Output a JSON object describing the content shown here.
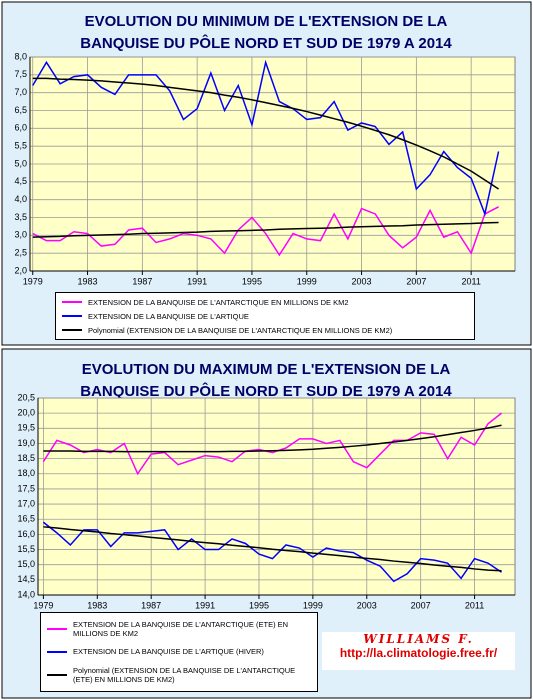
{
  "chart_data": [
    {
      "type": "line",
      "title": [
        "EVOLUTION DU MINIMUM DE L'EXTENSION DE LA",
        "BANQUISE DU PÔLE NORD ET SUD DE 1979 A 2014"
      ],
      "x": [
        1979,
        1980,
        1981,
        1982,
        1983,
        1984,
        1985,
        1986,
        1987,
        1988,
        1989,
        1990,
        1991,
        1992,
        1993,
        1994,
        1995,
        1996,
        1997,
        1998,
        1999,
        2000,
        2001,
        2002,
        2003,
        2004,
        2005,
        2006,
        2007,
        2008,
        2009,
        2010,
        2011,
        2012,
        2013
      ],
      "xlim": [
        1978.8,
        2014.2
      ],
      "xticks": [
        1979,
        1983,
        1987,
        1991,
        1995,
        1999,
        2003,
        2007,
        2011
      ],
      "ylim": [
        2,
        8
      ],
      "yticks": [
        {
          "value": 2,
          "label": "2,0"
        },
        {
          "value": 2.5,
          "label": "2,5"
        },
        {
          "value": 3,
          "label": "3,0"
        },
        {
          "value": 3.5,
          "label": "3,5"
        },
        {
          "value": 4,
          "label": "4,0"
        },
        {
          "value": 4.5,
          "label": "4,5"
        },
        {
          "value": 5,
          "label": "5,0"
        },
        {
          "value": 5.5,
          "label": "5,5"
        },
        {
          "value": 6,
          "label": "6,0"
        },
        {
          "value": 6.5,
          "label": "6,5"
        },
        {
          "value": 7,
          "label": "7,0"
        },
        {
          "value": 7.5,
          "label": "7,5"
        },
        {
          "value": 8,
          "label": "8,0"
        }
      ],
      "grid": true,
      "series": [
        {
          "name": "EXTENSION DE LA BANQUISE DE L'ANTARCTIQUE EN MILLIONS DE KM2",
          "color": "#ff00ff",
          "values": [
            3.05,
            2.85,
            2.85,
            3.1,
            3.05,
            2.7,
            2.75,
            3.15,
            3.2,
            2.8,
            2.9,
            3.05,
            3.0,
            2.9,
            2.5,
            3.15,
            3.5,
            3.05,
            2.45,
            3.05,
            2.9,
            2.85,
            3.6,
            2.9,
            3.75,
            3.6,
            3.0,
            2.65,
            2.95,
            3.7,
            2.95,
            3.1,
            2.5,
            3.6,
            3.8
          ]
        },
        {
          "name": "EXTENSION DE LA BANQUISE DE L'ARTIQUE",
          "color": "#0000ff",
          "values": [
            7.2,
            7.85,
            7.25,
            7.45,
            7.5,
            7.15,
            6.95,
            7.5,
            7.5,
            7.5,
            7.05,
            6.25,
            6.55,
            7.55,
            6.5,
            7.2,
            6.1,
            7.85,
            6.75,
            6.55,
            6.25,
            6.3,
            6.75,
            5.95,
            6.15,
            6.05,
            5.55,
            5.9,
            4.3,
            4.7,
            5.35,
            4.9,
            4.6,
            3.6,
            5.35
          ]
        },
        {
          "name": "Polynomial (EXTENSION DE LA BANQUISE DE L'ANTARCTIQUE EN MILLIONS DE KM2)",
          "color": "#000000",
          "values": [
            2.95,
            2.96,
            2.97,
            2.99,
            3.0,
            3.01,
            3.02,
            3.03,
            3.05,
            3.06,
            3.07,
            3.08,
            3.09,
            3.11,
            3.12,
            3.13,
            3.14,
            3.15,
            3.17,
            3.18,
            3.19,
            3.2,
            3.21,
            3.23,
            3.24,
            3.25,
            3.26,
            3.27,
            3.29,
            3.3,
            3.31,
            3.32,
            3.33,
            3.35,
            3.36
          ]
        },
        {
          "color": "#000000",
          "values": [
            7.4,
            7.4,
            7.38,
            7.37,
            7.35,
            7.33,
            7.3,
            7.27,
            7.24,
            7.2,
            7.15,
            7.1,
            7.05,
            7.0,
            6.93,
            6.87,
            6.8,
            6.72,
            6.64,
            6.56,
            6.47,
            6.37,
            6.27,
            6.17,
            6.06,
            5.94,
            5.82,
            5.68,
            5.53,
            5.37,
            5.2,
            5.0,
            4.8,
            4.55,
            4.3
          ]
        }
      ]
    },
    {
      "type": "line",
      "title": [
        "EVOLUTION DU MAXIMUM DE L'EXTENSION DE LA",
        "BANQUISE DU PÔLE NORD ET SUD DE 1979 A 2014"
      ],
      "x": [
        1979,
        1980,
        1981,
        1982,
        1983,
        1984,
        1985,
        1986,
        1987,
        1988,
        1989,
        1990,
        1991,
        1992,
        1993,
        1994,
        1995,
        1996,
        1997,
        1998,
        1999,
        2000,
        2001,
        2002,
        2003,
        2004,
        2005,
        2006,
        2007,
        2008,
        2009,
        2010,
        2011,
        2012,
        2013
      ],
      "xlim": [
        1978.6,
        2014.0
      ],
      "xticks": [
        1979,
        1983,
        1987,
        1991,
        1995,
        1999,
        2003,
        2007,
        2011
      ],
      "ylim": [
        14,
        20.5
      ],
      "yticks": [
        {
          "value": 14,
          "label": "14,0"
        },
        {
          "value": 14.5,
          "label": "14,5"
        },
        {
          "value": 15,
          "label": "15,0"
        },
        {
          "value": 15.5,
          "label": "15,5"
        },
        {
          "value": 16,
          "label": "16,0"
        },
        {
          "value": 16.5,
          "label": "16,5"
        },
        {
          "value": 17,
          "label": "17,0"
        },
        {
          "value": 17.5,
          "label": "17,5"
        },
        {
          "value": 18,
          "label": "18,0"
        },
        {
          "value": 18.5,
          "label": "18,5"
        },
        {
          "value": 19,
          "label": "19,0"
        },
        {
          "value": 19.5,
          "label": "19,5"
        },
        {
          "value": 20,
          "label": "20,0"
        },
        {
          "value": 20.5,
          "label": "20,5"
        }
      ],
      "grid": true,
      "series": [
        {
          "name": "EXTENSION DE LA BANQUISE DE L'ANTARCTIQUE (ETE) EN MILLIONS DE KM2",
          "color": "#ff00ff",
          "values": [
            18.4,
            19.1,
            18.95,
            18.7,
            18.8,
            18.7,
            19.0,
            18.0,
            18.65,
            18.7,
            18.3,
            18.45,
            18.6,
            18.55,
            18.4,
            18.75,
            18.8,
            18.7,
            18.85,
            19.15,
            19.15,
            19.0,
            19.1,
            18.4,
            18.2,
            18.65,
            19.1,
            19.1,
            19.35,
            19.3,
            18.5,
            19.2,
            18.95,
            19.65,
            20.0
          ]
        },
        {
          "name": "EXTENSION DE LA BANQUISE DE L'ARTIQUE (HIVER)",
          "color": "#0000ff",
          "values": [
            16.4,
            16.05,
            15.65,
            16.15,
            16.15,
            15.6,
            16.05,
            16.05,
            16.1,
            16.15,
            15.5,
            15.85,
            15.5,
            15.5,
            15.85,
            15.7,
            15.35,
            15.2,
            15.65,
            15.55,
            15.25,
            15.55,
            15.45,
            15.4,
            15.15,
            14.95,
            14.45,
            14.7,
            15.2,
            15.15,
            15.05,
            14.55,
            15.2,
            15.05,
            14.75
          ]
        },
        {
          "name": "Polynomial (EXTENSION DE LA BANQUISE DE L'ANTARCTIQUE (ETE) EN MILLIONS DE KM2)",
          "color": "#000000",
          "values": [
            18.75,
            18.75,
            18.75,
            18.74,
            18.74,
            18.74,
            18.73,
            18.73,
            18.73,
            18.73,
            18.73,
            18.73,
            18.73,
            18.73,
            18.74,
            18.74,
            18.75,
            18.76,
            18.77,
            18.79,
            18.81,
            18.84,
            18.87,
            18.91,
            18.95,
            19.0,
            19.05,
            19.1,
            19.16,
            19.22,
            19.29,
            19.36,
            19.43,
            19.51,
            19.6
          ]
        },
        {
          "color": "#000000",
          "values": [
            16.25,
            16.21,
            16.16,
            16.12,
            16.08,
            16.03,
            15.99,
            15.95,
            15.9,
            15.86,
            15.82,
            15.77,
            15.73,
            15.69,
            15.64,
            15.6,
            15.56,
            15.51,
            15.47,
            15.43,
            15.38,
            15.34,
            15.3,
            15.25,
            15.21,
            15.17,
            15.12,
            15.08,
            15.04,
            14.99,
            14.95,
            14.91,
            14.86,
            14.82,
            14.8
          ]
        }
      ]
    }
  ],
  "watermark": {
    "author": "WILLIAMS F.",
    "url": "http://la.climatologie.free.fr/"
  }
}
